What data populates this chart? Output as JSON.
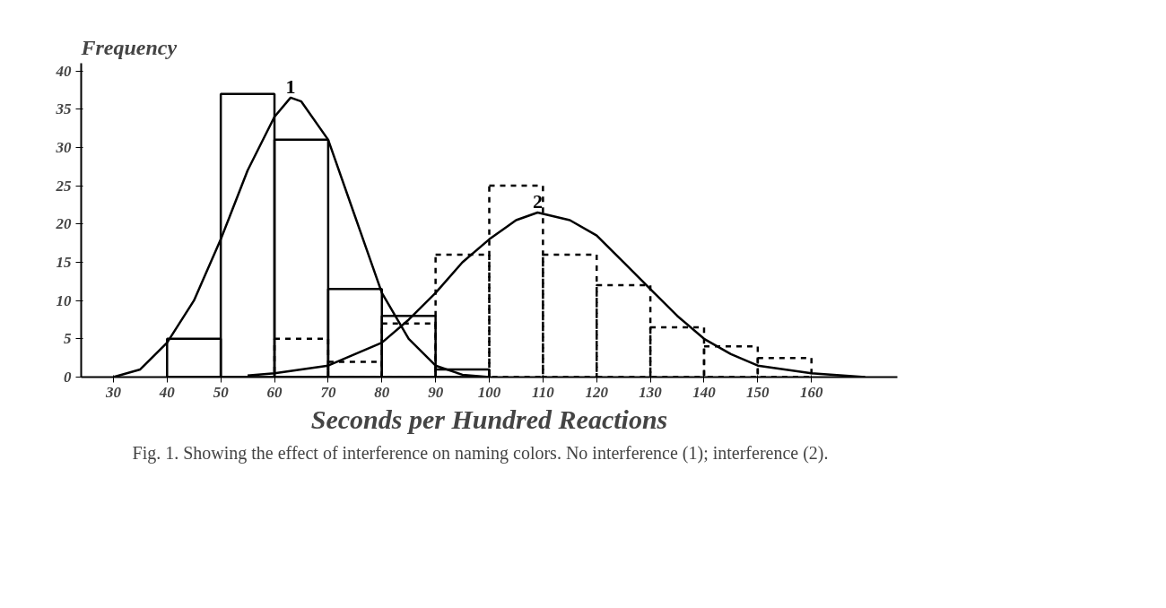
{
  "chart_data": {
    "type": "histogram",
    "ylabel": "Frequency",
    "xlabel": "Seconds per Hundred Reactions",
    "xlim": [
      24,
      176
    ],
    "ylim": [
      0,
      41
    ],
    "xticks": [
      30,
      40,
      50,
      60,
      70,
      80,
      90,
      100,
      110,
      120,
      130,
      140,
      150,
      160
    ],
    "yticks": [
      0,
      5,
      10,
      15,
      20,
      25,
      30,
      35,
      40
    ],
    "grid": false,
    "series": [
      {
        "color": "#000000",
        "line_style": "solid",
        "bins": [
          40,
          50,
          60,
          70,
          80,
          90,
          100
        ],
        "values": [
          5,
          37,
          31,
          11.5,
          8,
          1
        ]
      },
      {
        "color": "#000000",
        "line_style": "dashed",
        "bins": [
          60,
          70,
          80,
          90,
          100,
          110,
          120,
          130,
          140,
          150,
          160
        ],
        "values": [
          5,
          2,
          7,
          16,
          25,
          16,
          12,
          6.5,
          4,
          2.5
        ]
      },
      {
        "type": "line",
        "name": "1",
        "color": "#000000",
        "line_style": "solid",
        "x": [
          30,
          35,
          40,
          45,
          50,
          55,
          60,
          63,
          65,
          70,
          75,
          80,
          85,
          90,
          95,
          100
        ],
        "values": [
          0,
          1,
          4.5,
          10,
          18,
          27,
          34,
          36.5,
          36,
          31,
          21,
          11,
          5,
          1.5,
          0.3,
          0
        ]
      },
      {
        "type": "line",
        "name": "2",
        "color": "#000000",
        "line_style": "solid",
        "x": [
          55,
          60,
          70,
          80,
          85,
          90,
          95,
          100,
          105,
          109,
          115,
          120,
          125,
          130,
          135,
          140,
          145,
          150,
          160,
          170
        ],
        "values": [
          0.2,
          0.5,
          1.5,
          4.5,
          7.5,
          11,
          15,
          18,
          20.5,
          21.5,
          20.5,
          18.5,
          15,
          11.5,
          8,
          5,
          3,
          1.5,
          0.5,
          0
        ]
      }
    ],
    "annotations": [
      "Fig. 1.   Showing the effect of interference on naming colors.   No interference (1); interference (2)."
    ]
  }
}
